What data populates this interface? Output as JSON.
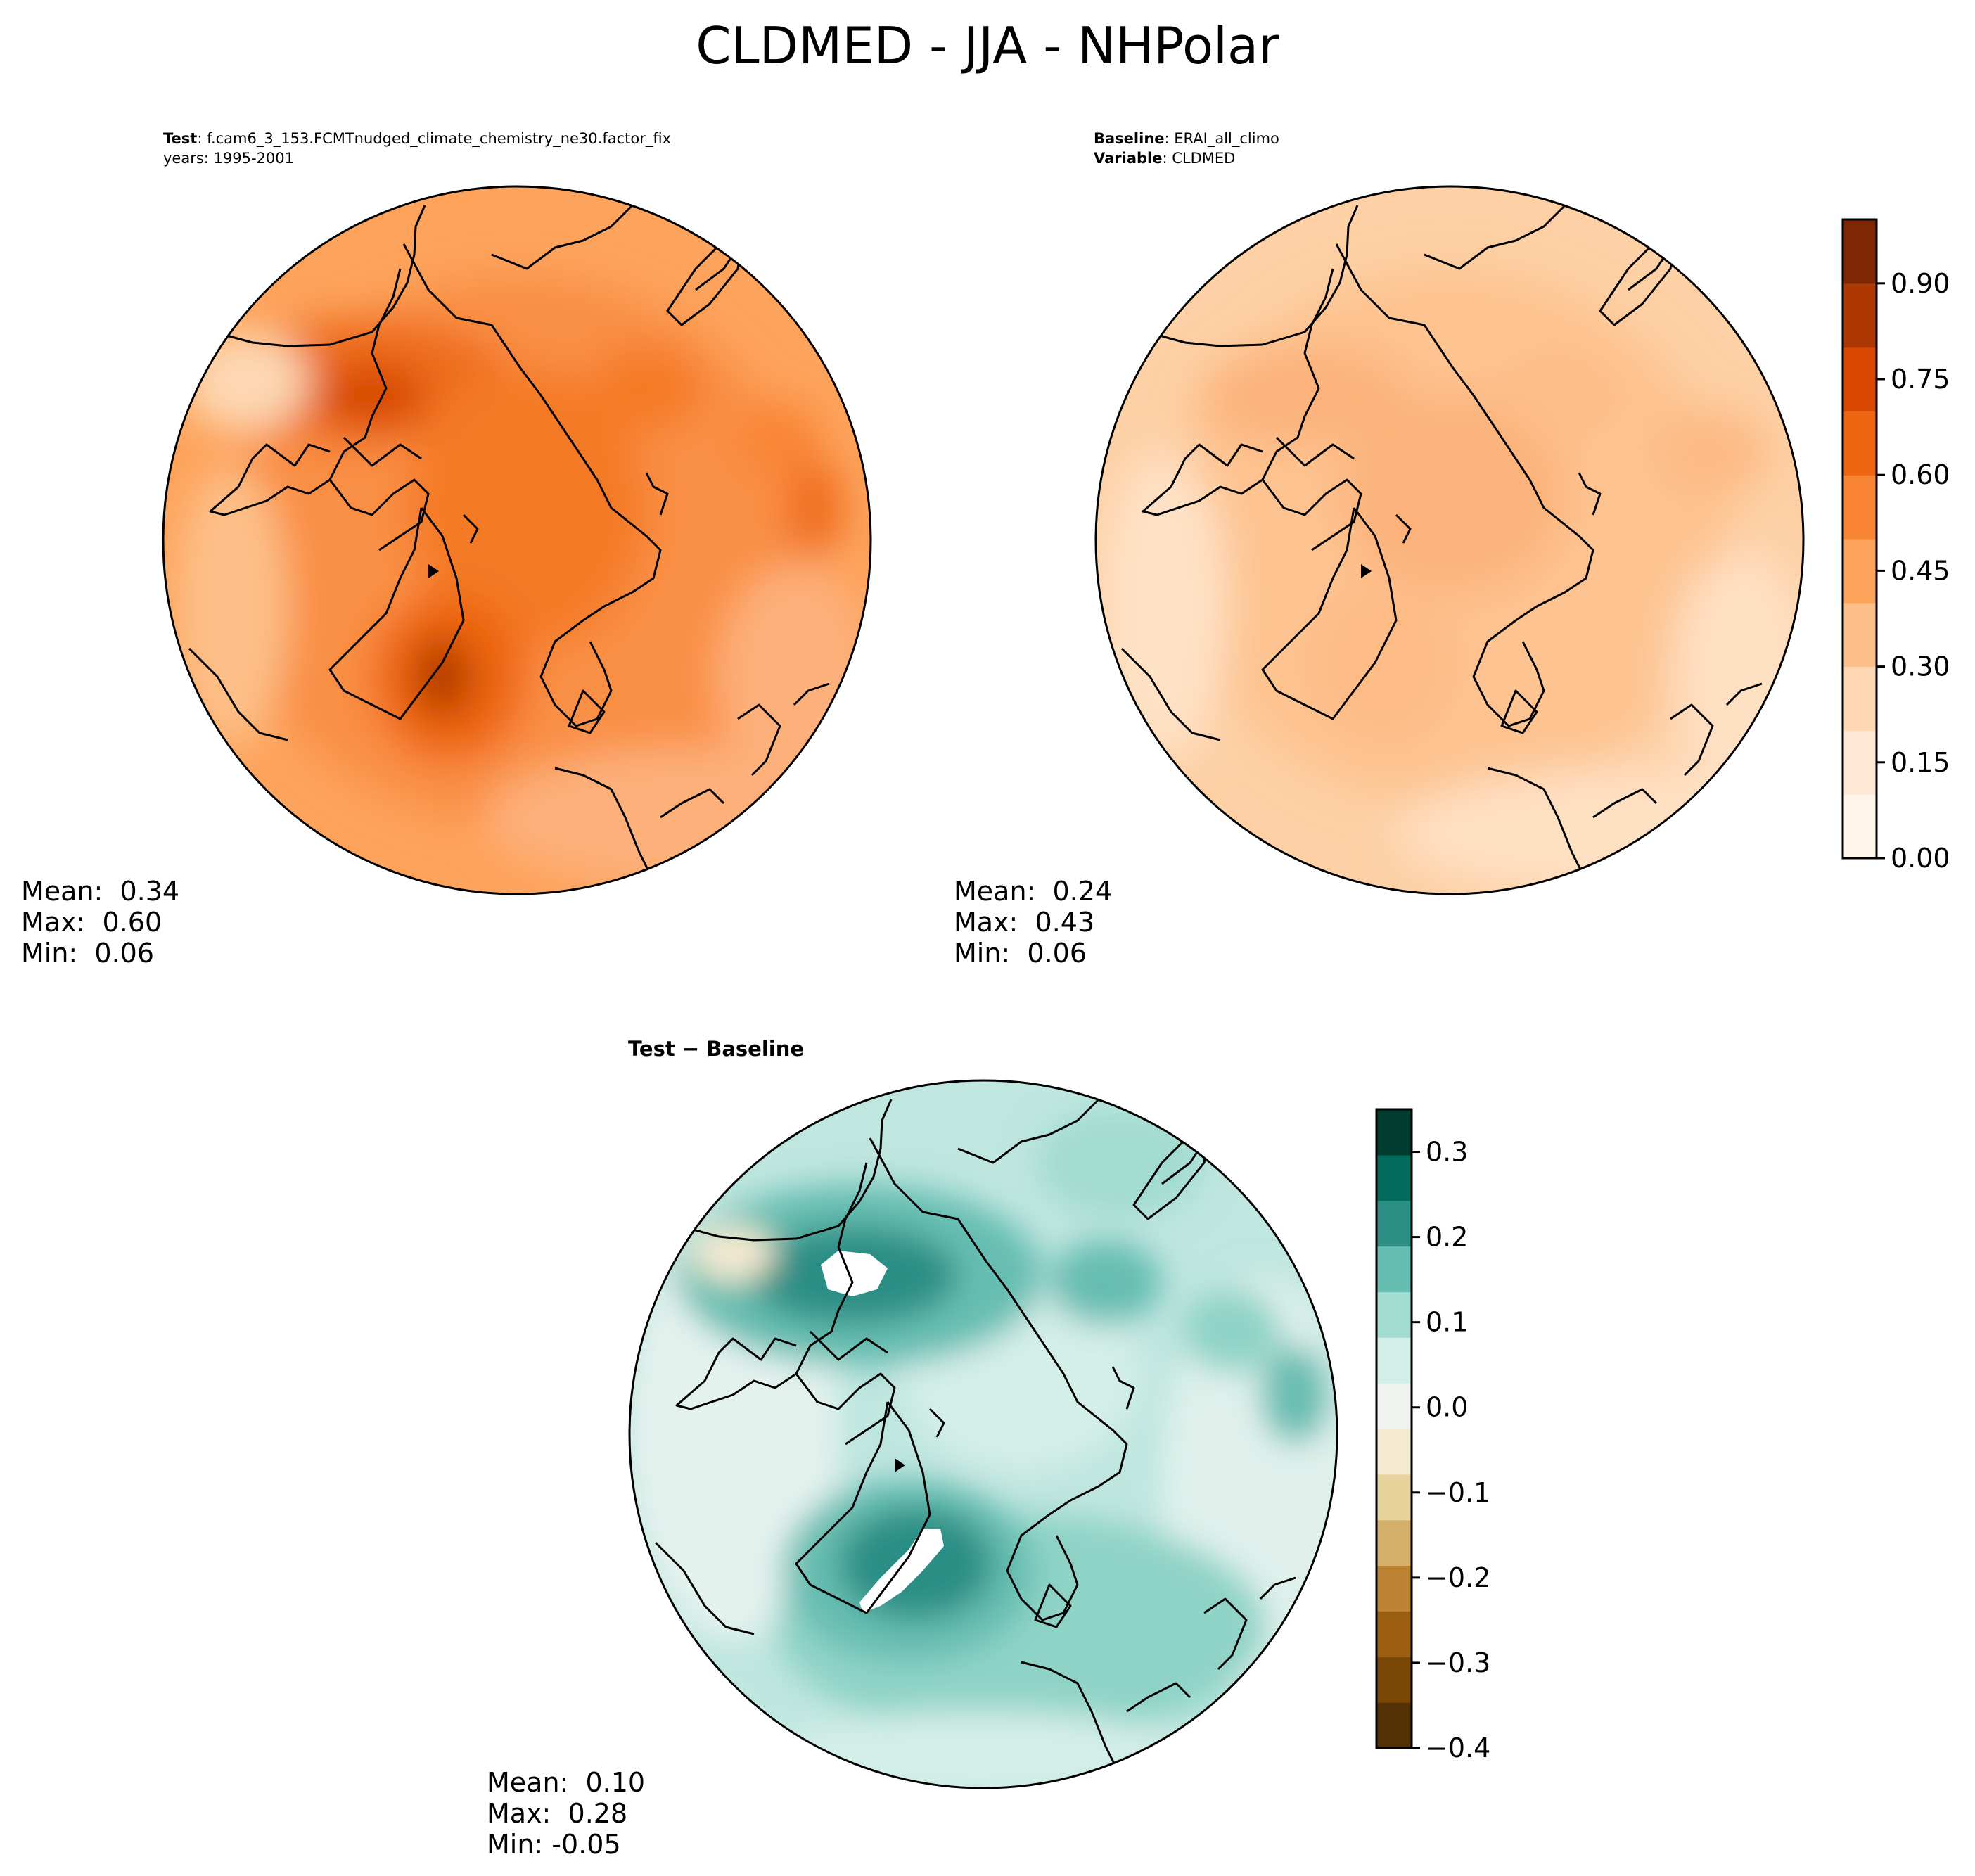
{
  "title": "CLDMED - JJA - NHPolar",
  "panels": {
    "test": {
      "header_line1_label": "Test",
      "header_line1_value": "f.cam6_3_153.FCMTnudged_climate_chemistry_ne30.factor_fix",
      "header_line2": "years: 1995-2001",
      "stats": {
        "mean": "Mean:  0.34",
        "max": "Max:  0.60",
        "min": "Min:  0.06"
      }
    },
    "baseline": {
      "header_line1_label": "Baseline",
      "header_line1_value": "ERAI_all_climo",
      "header_line2_label": "Variable",
      "header_line2_value": "CLDMED",
      "stats": {
        "mean": "Mean:  0.24",
        "max": "Max:  0.43",
        "min": "Min:  0.06"
      }
    },
    "difference": {
      "header": "Test − Baseline",
      "stats": {
        "mean": "Mean:  0.10",
        "max": "Max:  0.28",
        "min": "Min: -0.05"
      }
    }
  },
  "colorbars": {
    "main": {
      "ticks": [
        "0.00",
        "0.15",
        "0.30",
        "0.45",
        "0.60",
        "0.75",
        "0.90"
      ],
      "tick_values": [
        0.0,
        0.15,
        0.3,
        0.45,
        0.6,
        0.75,
        0.9
      ],
      "range": [
        0.0,
        1.0
      ],
      "colors": [
        "#fff5eb",
        "#fee8d3",
        "#fdd8b3",
        "#fdc088",
        "#fda35c",
        "#f98534",
        "#ee6511",
        "#d84801",
        "#ad3803",
        "#7f2704"
      ]
    },
    "diff": {
      "ticks": [
        "0.3",
        "0.2",
        "0.1",
        "0.0",
        "−0.1",
        "−0.2",
        "−0.3",
        "−0.4"
      ],
      "tick_values": [
        0.3,
        0.2,
        0.1,
        0.0,
        -0.1,
        -0.2,
        -0.3,
        -0.4
      ],
      "range": [
        -0.4,
        0.35
      ],
      "colors": [
        "#543005",
        "#7a4806",
        "#9c5f12",
        "#bc8334",
        "#d5b06a",
        "#e9d39d",
        "#f4ead0",
        "#f0f3ef",
        "#d4eee8",
        "#a3dcd1",
        "#66bdb1",
        "#2c8e85",
        "#036a5e",
        "#003c30"
      ]
    }
  },
  "chart_data": [
    {
      "type": "heatmap",
      "title": "Test",
      "projection": "north polar stereographic",
      "colorscale": "Oranges",
      "mean": 0.34,
      "max": 0.6,
      "min": 0.06
    },
    {
      "type": "heatmap",
      "title": "Baseline",
      "projection": "north polar stereographic",
      "colorscale": "Oranges",
      "mean": 0.24,
      "max": 0.43,
      "min": 0.06
    },
    {
      "type": "heatmap",
      "title": "Test − Baseline",
      "projection": "north polar stereographic",
      "colorscale": "BrBG",
      "mean": 0.1,
      "max": 0.28,
      "min": -0.05
    }
  ]
}
